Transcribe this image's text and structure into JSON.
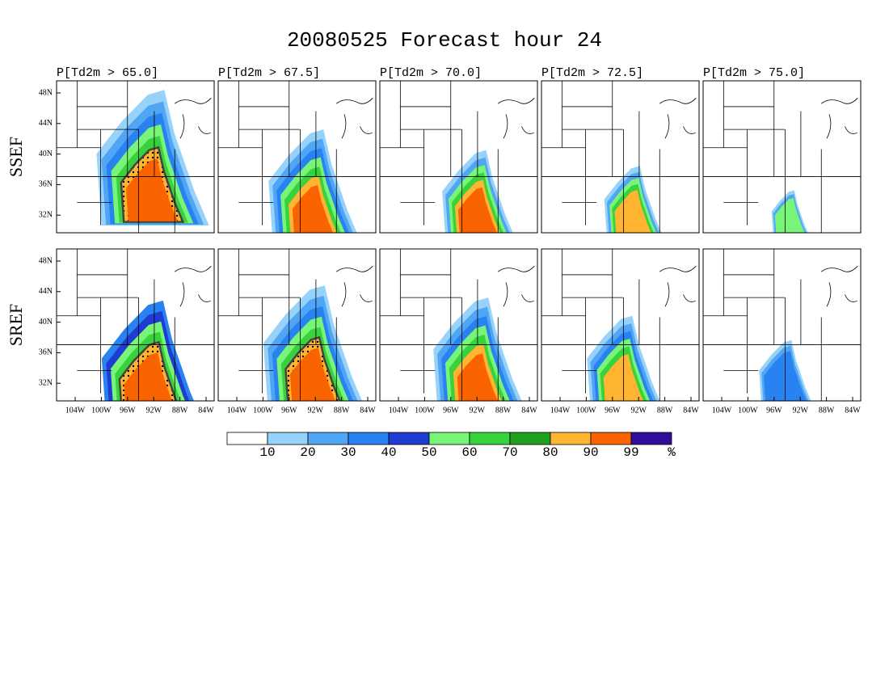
{
  "title": "20080525 Forecast hour 24",
  "columns": [
    "P[Td2m > 65.0]",
    "P[Td2m > 67.5]",
    "P[Td2m > 70.0]",
    "P[Td2m > 72.5]",
    "P[Td2m > 75.0]"
  ],
  "rows": [
    "SSEF",
    "SREF"
  ],
  "lat_labels": [
    "48N",
    "44N",
    "40N",
    "36N",
    "32N"
  ],
  "lon_labels": [
    "104W",
    "100W",
    "96W",
    "92W",
    "88W",
    "84W"
  ],
  "colorbar": {
    "colors": [
      "#ffffff",
      "#96d2fa",
      "#50a5f5",
      "#2882f0",
      "#1e3cd2",
      "#78f578",
      "#37d23c",
      "#1ea01e",
      "#ffb432",
      "#fa6400",
      "#2d0f9b"
    ],
    "labels": [
      "10",
      "20",
      "30",
      "40",
      "50",
      "60",
      "70",
      "80",
      "90",
      "99"
    ],
    "unit": "%"
  }
}
